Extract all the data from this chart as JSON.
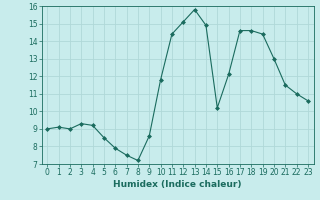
{
  "x": [
    0,
    1,
    2,
    3,
    4,
    5,
    6,
    7,
    8,
    9,
    10,
    11,
    12,
    13,
    14,
    15,
    16,
    17,
    18,
    19,
    20,
    21,
    22,
    23
  ],
  "y": [
    9.0,
    9.1,
    9.0,
    9.3,
    9.2,
    8.5,
    7.9,
    7.5,
    7.2,
    8.6,
    11.8,
    14.4,
    15.1,
    15.8,
    14.9,
    10.2,
    12.1,
    14.6,
    14.6,
    14.4,
    13.0,
    11.5,
    11.0,
    10.6
  ],
  "line_color": "#1a6b5e",
  "marker": "D",
  "marker_size": 2,
  "bg_color": "#c8ecec",
  "grid_color": "#b0d8d8",
  "xlabel": "Humidex (Indice chaleur)",
  "ylim": [
    7,
    16
  ],
  "xlim": [
    -0.5,
    23.5
  ],
  "yticks": [
    7,
    8,
    9,
    10,
    11,
    12,
    13,
    14,
    15,
    16
  ],
  "xticks": [
    0,
    1,
    2,
    3,
    4,
    5,
    6,
    7,
    8,
    9,
    10,
    11,
    12,
    13,
    14,
    15,
    16,
    17,
    18,
    19,
    20,
    21,
    22,
    23
  ],
  "xlabel_fontsize": 6.5,
  "tick_fontsize": 5.5,
  "tick_color": "#1a6b5e"
}
